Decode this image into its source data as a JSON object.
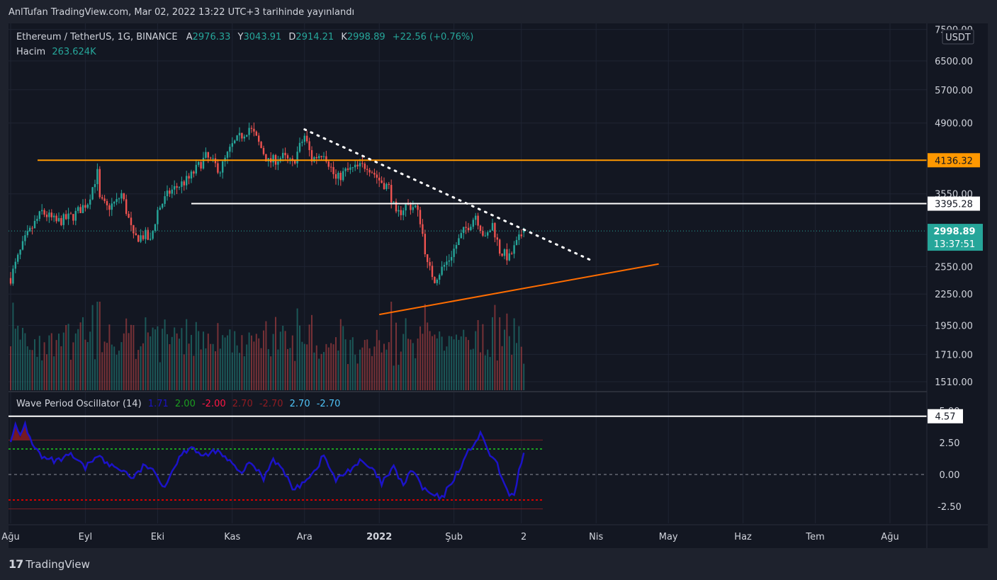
{
  "publication_note": "AnlTufan TradingView.com, Mar 02, 2022 13:22 UTC+3 tarihinde yayınlandı",
  "brand": {
    "logo_text": "17",
    "name": "TradingView"
  },
  "colors": {
    "up": "#26a69a",
    "down": "#ef5350",
    "resistance": "#ff9800",
    "support": "#ff6d00",
    "white": "#ffffff",
    "osc_line": "#1c13c8",
    "osc_green": "#1b9e20",
    "osc_red": "#d50000",
    "bg": "#131722"
  },
  "legend": {
    "symbol": "Ethereum / TetherUS, 1G, BINANCE",
    "open_label": "A",
    "open": "2976.33",
    "high_label": "Y",
    "high": "3043.91",
    "low_label": "D",
    "low": "2914.21",
    "close_label": "K",
    "close": "2998.89",
    "change": "+22.56 (+0.76%)",
    "volume_label": "Hacim",
    "volume": "263.624K"
  },
  "oscillator_legend": {
    "name": "Wave Period Oscillator (14)",
    "v1": "1.71",
    "v2": "2.00",
    "v3": "-2.00",
    "v4": "2.70",
    "v5": "-2.70",
    "v6": "2.70",
    "v7": "-2.70"
  },
  "price_axis": {
    "currency": "USDT",
    "ticks": [
      "7500.00",
      "6500.00",
      "5700.00",
      "4900.00",
      "3550.00",
      "2550.00",
      "2250.00",
      "1950.00",
      "1710.00",
      "1510.00"
    ],
    "labels": {
      "resistance": "4136.32",
      "level": "3395.28",
      "last": "2998.89",
      "countdown": "13:37:51"
    }
  },
  "osc_axis": {
    "ticks": [
      "5.00",
      "2.50",
      "0.00",
      "-2.50"
    ],
    "level_label": "4.57"
  },
  "time_axis": {
    "ticks": [
      "Ağu",
      "Eyl",
      "Eki",
      "Kas",
      "Ara",
      "2022",
      "Şub",
      "2",
      "Nis",
      "May",
      "Haz",
      "Tem",
      "Ağu"
    ]
  },
  "chart_data": [
    {
      "type": "candlestick",
      "title": "Ethereum / TetherUS, 1G, BINANCE",
      "y_scale": "log",
      "ylim": [
        1450,
        7800
      ],
      "x_start": "2021-08-01",
      "x_end": "2022-03-02",
      "current_price": 2998.89,
      "horizontal_levels": [
        4136.32,
        3395.28
      ],
      "trendlines": [
        {
          "style": "dotted",
          "from": {
            "date": "2021-12-01",
            "price": 4760
          },
          "to": {
            "date": "2022-03-31",
            "price": 2610
          }
        },
        {
          "style": "solid",
          "from": {
            "date": "2022-01-01",
            "price": 2050
          },
          "to": {
            "date": "2022-04-27",
            "price": 2580
          }
        }
      ],
      "anchors": [
        [
          "2021-08-01",
          2420
        ],
        [
          "2021-08-07",
          2880
        ],
        [
          "2021-08-14",
          3270
        ],
        [
          "2021-08-20",
          3120
        ],
        [
          "2021-08-27",
          3210
        ],
        [
          "2021-09-02",
          3420
        ],
        [
          "2021-09-06",
          3900
        ],
        [
          "2021-09-07",
          3450
        ],
        [
          "2021-09-10",
          3330
        ],
        [
          "2021-09-14",
          3420
        ],
        [
          "2021-09-16",
          3550
        ],
        [
          "2021-09-21",
          2900
        ],
        [
          "2021-09-26",
          2940
        ],
        [
          "2021-09-28",
          2850
        ],
        [
          "2021-10-01",
          3290
        ],
        [
          "2021-10-06",
          3580
        ],
        [
          "2021-10-14",
          3800
        ],
        [
          "2021-10-21",
          4200
        ],
        [
          "2021-10-27",
          3960
        ],
        [
          "2021-11-01",
          4420
        ],
        [
          "2021-11-08",
          4800
        ],
        [
          "2021-11-10",
          4650
        ],
        [
          "2021-11-16",
          4100
        ],
        [
          "2021-11-22",
          4200
        ],
        [
          "2021-11-26",
          4060
        ],
        [
          "2021-12-01",
          4620
        ],
        [
          "2021-12-04",
          4150
        ],
        [
          "2021-12-09",
          4300
        ],
        [
          "2021-12-14",
          3780
        ],
        [
          "2021-12-18",
          3930
        ],
        [
          "2021-12-27",
          4050
        ],
        [
          "2022-01-01",
          3780
        ],
        [
          "2022-01-05",
          3650
        ],
        [
          "2022-01-08",
          3200
        ],
        [
          "2022-01-12",
          3370
        ],
        [
          "2022-01-16",
          3340
        ],
        [
          "2022-01-18",
          3150
        ],
        [
          "2022-01-21",
          2560
        ],
        [
          "2022-01-24",
          2410
        ],
        [
          "2022-01-30",
          2640
        ],
        [
          "2022-02-05",
          2990
        ],
        [
          "2022-02-08",
          3120
        ],
        [
          "2022-02-10",
          3230
        ],
        [
          "2022-02-14",
          2880
        ],
        [
          "2022-02-17",
          3090
        ],
        [
          "2022-02-20",
          2740
        ],
        [
          "2022-02-24",
          2650
        ],
        [
          "2022-02-26",
          2770
        ],
        [
          "2022-03-02",
          2999
        ]
      ],
      "volume_note": "daily volume bars shown along the bottom of the price pane"
    },
    {
      "type": "line",
      "title": "Wave Period Oscillator (14)",
      "ylim": [
        -3.3,
        5.3
      ],
      "levels": {
        "upper_outer": 2.7,
        "upper": 2.0,
        "zero": 0.0,
        "lower": -2.0,
        "lower_outer": -2.7,
        "marked": 4.57
      },
      "anchors": [
        [
          "2021-08-01",
          2.8
        ],
        [
          "2021-08-03",
          3.8
        ],
        [
          "2021-08-05",
          2.9
        ],
        [
          "2021-08-07",
          4.0
        ],
        [
          "2021-08-09",
          2.8
        ],
        [
          "2021-08-14",
          1.3
        ],
        [
          "2021-08-20",
          1.0
        ],
        [
          "2021-08-26",
          1.5
        ],
        [
          "2021-09-01",
          0.5
        ],
        [
          "2021-09-06",
          1.6
        ],
        [
          "2021-09-10",
          0.8
        ],
        [
          "2021-09-16",
          0.4
        ],
        [
          "2021-09-21",
          -0.3
        ],
        [
          "2021-09-26",
          0.8
        ],
        [
          "2021-10-01",
          -0.2
        ],
        [
          "2021-10-04",
          -0.9
        ],
        [
          "2021-10-10",
          1.4
        ],
        [
          "2021-10-15",
          2.3
        ],
        [
          "2021-10-20",
          1.3
        ],
        [
          "2021-10-25",
          1.9
        ],
        [
          "2021-10-31",
          1.0
        ],
        [
          "2021-11-04",
          0.1
        ],
        [
          "2021-11-09",
          0.9
        ],
        [
          "2021-11-14",
          -0.3
        ],
        [
          "2021-11-18",
          1.3
        ],
        [
          "2021-11-22",
          0.3
        ],
        [
          "2021-11-27",
          -1.3
        ],
        [
          "2021-12-01",
          -0.4
        ],
        [
          "2021-12-05",
          0.2
        ],
        [
          "2021-12-09",
          1.5
        ],
        [
          "2021-12-14",
          -0.5
        ],
        [
          "2021-12-19",
          0.3
        ],
        [
          "2021-12-24",
          1.0
        ],
        [
          "2021-12-29",
          0.4
        ],
        [
          "2022-01-02",
          -0.7
        ],
        [
          "2022-01-07",
          0.5
        ],
        [
          "2022-01-11",
          -0.8
        ],
        [
          "2022-01-15",
          0.4
        ],
        [
          "2022-01-19",
          -1.1
        ],
        [
          "2022-01-23",
          -1.6
        ],
        [
          "2022-01-27",
          -1.9
        ],
        [
          "2022-01-31",
          -0.6
        ],
        [
          "2022-02-04",
          0.7
        ],
        [
          "2022-02-08",
          2.1
        ],
        [
          "2022-02-12",
          3.1
        ],
        [
          "2022-02-16",
          1.6
        ],
        [
          "2022-02-19",
          0.7
        ],
        [
          "2022-02-23",
          -1.4
        ],
        [
          "2022-02-26",
          -1.6
        ],
        [
          "2022-02-28",
          0.3
        ],
        [
          "2022-03-02",
          1.7
        ]
      ]
    }
  ]
}
